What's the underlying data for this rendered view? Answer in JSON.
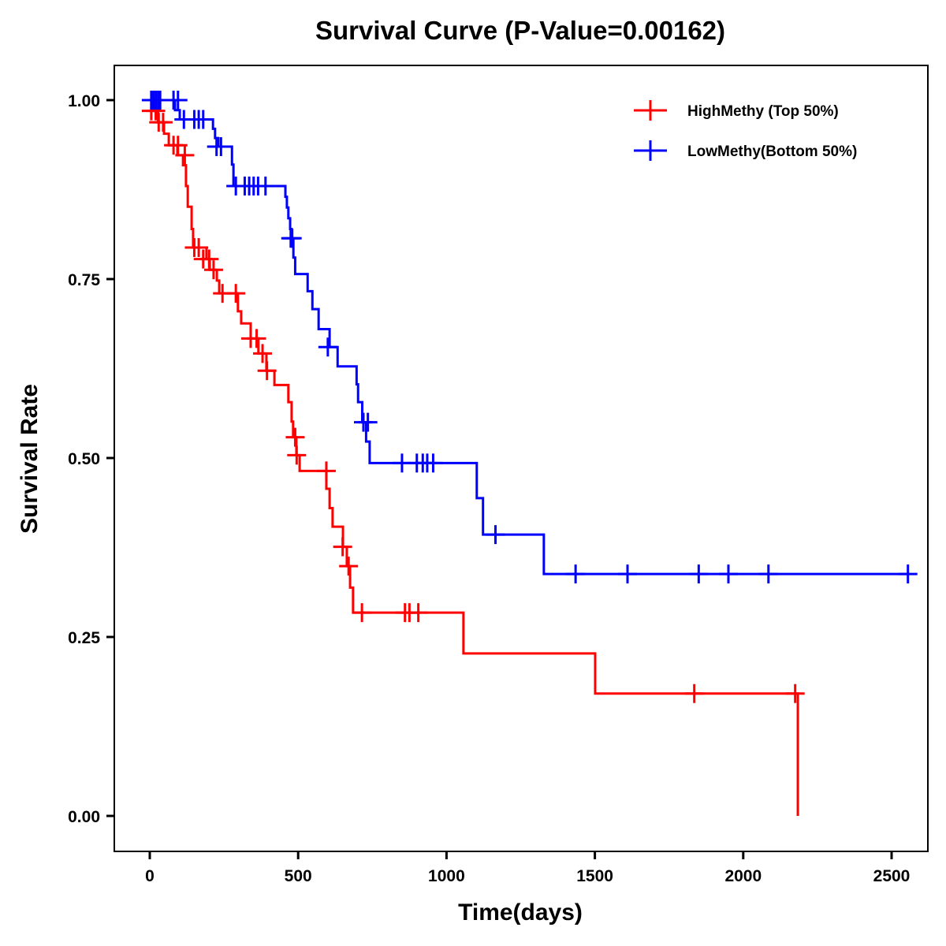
{
  "chart_data": {
    "type": "line",
    "subtype": "kaplan-meier-step",
    "title": "Survival Curve (P-Value=0.00162)",
    "xlabel": "Time(days)",
    "ylabel": "Survival Rate",
    "xlim": [
      -115,
      2600
    ],
    "ylim": [
      -0.05,
      1.05
    ],
    "x_ticks": [
      0,
      500,
      1000,
      1500,
      2000,
      2500
    ],
    "x_tick_labels": [
      "0",
      "500",
      "1000",
      "1500",
      "2000",
      "2500"
    ],
    "y_ticks": [
      0,
      0.25,
      0.5,
      0.75,
      1.0
    ],
    "y_tick_labels": [
      "0.00",
      "0.25",
      "0.50",
      "0.75",
      "1.00"
    ],
    "grid": false,
    "legend_position": "top-right",
    "series": [
      {
        "name": "HighMethy (Top 50%)",
        "color": "#ff0000",
        "steps": [
          [
            0,
            1.0
          ],
          [
            15,
            0.985
          ],
          [
            28,
            0.969
          ],
          [
            48,
            0.953
          ],
          [
            64,
            0.937
          ],
          [
            93,
            0.923
          ],
          [
            112,
            0.909
          ],
          [
            122,
            0.88
          ],
          [
            128,
            0.851
          ],
          [
            141,
            0.82
          ],
          [
            146,
            0.794
          ],
          [
            191,
            0.778
          ],
          [
            202,
            0.763
          ],
          [
            226,
            0.748
          ],
          [
            234,
            0.73
          ],
          [
            297,
            0.705
          ],
          [
            308,
            0.688
          ],
          [
            340,
            0.667
          ],
          [
            366,
            0.646
          ],
          [
            393,
            0.622
          ],
          [
            420,
            0.602
          ],
          [
            467,
            0.578
          ],
          [
            478,
            0.551
          ],
          [
            483,
            0.529
          ],
          [
            494,
            0.504
          ],
          [
            505,
            0.482
          ],
          [
            595,
            0.457
          ],
          [
            606,
            0.43
          ],
          [
            616,
            0.404
          ],
          [
            651,
            0.376
          ],
          [
            664,
            0.349
          ],
          [
            675,
            0.319
          ],
          [
            685,
            0.284
          ],
          [
            1057,
            0.227
          ],
          [
            1501,
            0.171
          ],
          [
            2184,
            0.0
          ]
        ],
        "censored": [
          [
            5,
            0.985
          ],
          [
            20,
            0.985
          ],
          [
            30,
            0.969
          ],
          [
            45,
            0.969
          ],
          [
            80,
            0.937
          ],
          [
            95,
            0.937
          ],
          [
            118,
            0.923
          ],
          [
            150,
            0.794
          ],
          [
            165,
            0.794
          ],
          [
            180,
            0.778
          ],
          [
            200,
            0.778
          ],
          [
            215,
            0.763
          ],
          [
            245,
            0.73
          ],
          [
            290,
            0.73
          ],
          [
            340,
            0.667
          ],
          [
            360,
            0.667
          ],
          [
            380,
            0.646
          ],
          [
            395,
            0.622
          ],
          [
            490,
            0.529
          ],
          [
            495,
            0.504
          ],
          [
            595,
            0.482
          ],
          [
            650,
            0.376
          ],
          [
            670,
            0.349
          ],
          [
            715,
            0.284
          ],
          [
            860,
            0.284
          ],
          [
            875,
            0.284
          ],
          [
            905,
            0.284
          ],
          [
            1835,
            0.171
          ],
          [
            2175,
            0.171
          ]
        ]
      },
      {
        "name": "LowMethy(Bottom 50%)",
        "color": "#0000ff",
        "steps": [
          [
            0,
            1.0
          ],
          [
            85,
            0.986
          ],
          [
            101,
            0.973
          ],
          [
            213,
            0.96
          ],
          [
            220,
            0.947
          ],
          [
            231,
            0.935
          ],
          [
            277,
            0.91
          ],
          [
            282,
            0.88
          ],
          [
            457,
            0.865
          ],
          [
            462,
            0.85
          ],
          [
            467,
            0.835
          ],
          [
            473,
            0.82
          ],
          [
            478,
            0.807
          ],
          [
            484,
            0.78
          ],
          [
            490,
            0.757
          ],
          [
            532,
            0.733
          ],
          [
            548,
            0.708
          ],
          [
            569,
            0.68
          ],
          [
            606,
            0.655
          ],
          [
            633,
            0.628
          ],
          [
            697,
            0.603
          ],
          [
            702,
            0.578
          ],
          [
            716,
            0.55
          ],
          [
            729,
            0.523
          ],
          [
            741,
            0.493
          ],
          [
            1102,
            0.444
          ],
          [
            1123,
            0.393
          ],
          [
            1328,
            0.338
          ]
        ],
        "censored": [
          [
            5,
            1.0
          ],
          [
            12,
            1.0
          ],
          [
            20,
            1.0
          ],
          [
            28,
            1.0
          ],
          [
            35,
            1.0
          ],
          [
            80,
            1.0
          ],
          [
            95,
            1.0
          ],
          [
            115,
            0.973
          ],
          [
            150,
            0.973
          ],
          [
            165,
            0.973
          ],
          [
            180,
            0.973
          ],
          [
            225,
            0.935
          ],
          [
            240,
            0.935
          ],
          [
            290,
            0.88
          ],
          [
            320,
            0.88
          ],
          [
            335,
            0.88
          ],
          [
            350,
            0.88
          ],
          [
            365,
            0.88
          ],
          [
            390,
            0.88
          ],
          [
            475,
            0.807
          ],
          [
            480,
            0.807
          ],
          [
            600,
            0.655
          ],
          [
            720,
            0.55
          ],
          [
            735,
            0.55
          ],
          [
            850,
            0.493
          ],
          [
            900,
            0.493
          ],
          [
            920,
            0.493
          ],
          [
            935,
            0.493
          ],
          [
            955,
            0.493
          ],
          [
            1165,
            0.393
          ],
          [
            1435,
            0.338
          ],
          [
            1610,
            0.338
          ],
          [
            1850,
            0.338
          ],
          [
            1950,
            0.338
          ],
          [
            2085,
            0.338
          ],
          [
            2555,
            0.338
          ]
        ]
      }
    ]
  }
}
